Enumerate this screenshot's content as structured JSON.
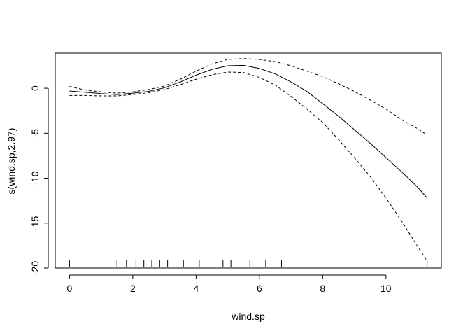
{
  "chart_data": {
    "type": "line",
    "title": "",
    "xlabel": "wind.sp",
    "ylabel": "s(wind.sp,2.97)",
    "xlim": [
      -0.45,
      11.75
    ],
    "ylim": [
      -20,
      3.9
    ],
    "xticks": [
      0,
      2,
      4,
      6,
      8,
      10
    ],
    "yticks": [
      -20,
      -15,
      -10,
      -5,
      0
    ],
    "xtick_labels": [
      "0",
      "2",
      "4",
      "6",
      "8",
      "10"
    ],
    "ytick_labels": [
      "-20",
      "-15",
      "-10",
      "-5",
      "0"
    ],
    "grid": false,
    "legend": "none",
    "series": [
      {
        "style": "solid",
        "x": [
          0,
          0.5,
          1,
          1.5,
          2,
          2.5,
          3,
          3.5,
          4,
          4.5,
          5,
          5.5,
          6,
          6.5,
          7,
          7.5,
          8,
          8.5,
          9,
          9.5,
          10,
          10.5,
          11,
          11.3
        ],
        "y": [
          -0.3,
          -0.45,
          -0.6,
          -0.7,
          -0.55,
          -0.35,
          0.05,
          0.7,
          1.45,
          2.1,
          2.5,
          2.55,
          2.2,
          1.6,
          0.7,
          -0.35,
          -1.7,
          -3.1,
          -4.6,
          -6.1,
          -7.7,
          -9.3,
          -11.0,
          -12.2
        ]
      },
      {
        "style": "dashed",
        "x": [
          0,
          0.5,
          1,
          1.5,
          2,
          2.5,
          3,
          3.5,
          4,
          4.5,
          5,
          5.5,
          6,
          6.5,
          7,
          7.5,
          8,
          8.5,
          9,
          9.5,
          10,
          10.5,
          11,
          11.3
        ],
        "y": [
          0.2,
          -0.2,
          -0.4,
          -0.55,
          -0.4,
          -0.15,
          0.25,
          1.0,
          1.9,
          2.7,
          3.2,
          3.3,
          3.2,
          2.95,
          2.5,
          1.9,
          1.3,
          0.5,
          -0.35,
          -1.3,
          -2.3,
          -3.5,
          -4.5,
          -5.2
        ]
      },
      {
        "style": "dashed",
        "x": [
          0,
          0.5,
          1,
          1.5,
          2,
          2.5,
          3,
          3.5,
          4,
          4.5,
          5,
          5.5,
          6,
          6.5,
          7,
          7.5,
          8,
          8.5,
          9,
          9.5,
          10,
          10.5,
          11,
          11.3
        ],
        "y": [
          -0.8,
          -0.8,
          -0.85,
          -0.85,
          -0.7,
          -0.5,
          -0.15,
          0.4,
          1.0,
          1.5,
          1.8,
          1.75,
          1.2,
          0.35,
          -0.9,
          -2.3,
          -3.8,
          -5.7,
          -7.7,
          -9.8,
          -12.2,
          -14.8,
          -17.6,
          -19.2
        ]
      }
    ],
    "rug": [
      0,
      1.5,
      1.8,
      2.1,
      2.35,
      2.6,
      2.85,
      3.1,
      3.6,
      4.1,
      4.6,
      4.85,
      5.1,
      5.7,
      6.2,
      6.7,
      11.3
    ]
  }
}
